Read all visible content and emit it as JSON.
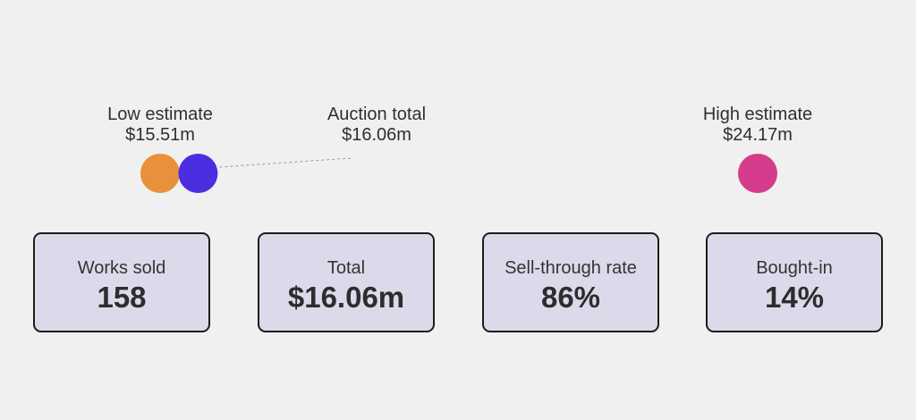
{
  "chart_data": {
    "type": "dumbbell",
    "axis_min": 15.51,
    "axis_max": 24.17,
    "points": [
      {
        "key": "low",
        "label": "Low estimate",
        "value_label": "$15.51m",
        "value": 15.51,
        "color": "#e8913a"
      },
      {
        "key": "total",
        "label": "Auction total",
        "value_label": "$16.06m",
        "value": 16.06,
        "color": "#4c2ee0"
      },
      {
        "key": "high",
        "label": "High estimate",
        "value_label": "$24.17m",
        "value": 24.17,
        "color": "#d63c8c"
      }
    ],
    "gradient": [
      "#4c2ee0",
      "#d63c8c"
    ]
  },
  "stats": [
    {
      "label": "Works sold",
      "value": "158"
    },
    {
      "label": "Total",
      "value": "$16.06m"
    },
    {
      "label": "Sell-through rate",
      "value": "86%"
    },
    {
      "label": "Bought-in",
      "value": "14%"
    }
  ]
}
